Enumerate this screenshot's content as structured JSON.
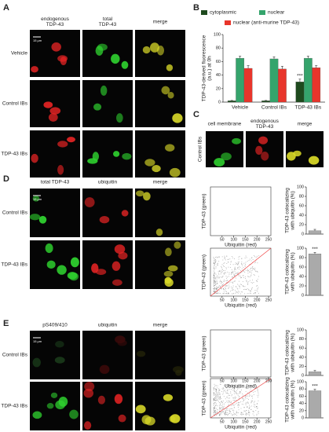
{
  "panel_labels": [
    "A",
    "B",
    "C",
    "D",
    "E"
  ],
  "panel_a": {
    "columns": [
      [
        "endogenous",
        "TDP-43"
      ],
      [
        "total",
        "TDP-43"
      ],
      [
        "merge"
      ]
    ],
    "rows": [
      "Vehicle",
      "Control IBs",
      "TDP-43 IBs"
    ],
    "scale_bar": "15 μm"
  },
  "panel_c": {
    "columns": [
      [
        "cell membrane"
      ],
      [
        "endogenous",
        "TDP-43"
      ],
      [
        "merge"
      ]
    ],
    "row": "Control IBs"
  },
  "panel_d": {
    "columns": [
      [
        "total TDP-43"
      ],
      [
        "ubiquitin"
      ],
      [
        "merge"
      ]
    ],
    "rows": [
      "Control IBs",
      "TDP-43 IBs"
    ],
    "scale_bar": "15 μm"
  },
  "panel_e": {
    "columns": [
      [
        "pS409/410"
      ],
      [
        "ubiquitin"
      ],
      [
        "merge"
      ]
    ],
    "rows": [
      "Control IBs",
      "TDP-43 IBs"
    ],
    "scale_bar": "15 μm"
  },
  "chart_data": [
    {
      "type": "bar",
      "y_label": [
        "TDP-43-derived fluorescence",
        "(a.u.) at 0h"
      ],
      "categories": [
        "Vehicle",
        "Control IBs",
        "TDP-43 IBs"
      ],
      "series": [
        {
          "name": "cytoplasmic",
          "color": "#1e4a1e",
          "values": [
            2,
            2,
            30
          ],
          "errors": [
            0.5,
            0.5,
            4
          ],
          "significance": [
            null,
            null,
            "***"
          ]
        },
        {
          "name": "nuclear",
          "color": "#35a46c",
          "values": [
            65,
            64,
            65
          ],
          "errors": [
            3,
            3,
            3
          ]
        },
        {
          "name": "nuclear (anti-murine TDP-43)",
          "color": "#e8352b",
          "values": [
            50,
            49,
            51
          ],
          "errors": [
            4,
            4,
            3
          ]
        }
      ],
      "ylim": [
        0,
        100
      ],
      "yticks": [
        0,
        20,
        40,
        60,
        80,
        100
      ]
    },
    {
      "type": "scatter",
      "x_label": "Ubiquitin (red)",
      "y_label": "TDP-43 (green)",
      "xlim": [
        0,
        260
      ],
      "ylim": [
        0,
        260
      ],
      "xticks": [
        50,
        100,
        150,
        200,
        250
      ]
    },
    {
      "type": "bar",
      "y_label": [
        "TDP-43 colocalizing",
        "with ubiquitin (%)"
      ],
      "categories": [
        null
      ],
      "values": [
        7
      ],
      "errors": [
        3
      ],
      "color": "#aaaaaa",
      "ylim": [
        0,
        100
      ],
      "yticks": [
        0,
        20,
        40,
        60,
        80,
        100
      ]
    },
    {
      "type": "scatter",
      "x_label": "Ubiquitin (red)",
      "y_label": "TDP-43 (green)",
      "xlim": [
        0,
        260
      ],
      "ylim": [
        0,
        260
      ],
      "xticks": [
        50,
        100,
        150,
        200,
        250
      ]
    },
    {
      "type": "bar",
      "y_label": [
        "TDP-43 colocalizing",
        "with ubiquitin (%)"
      ],
      "categories": [
        null
      ],
      "values": [
        88
      ],
      "errors": [
        3
      ],
      "significance": [
        "***"
      ],
      "color": "#aaaaaa",
      "ylim": [
        0,
        100
      ],
      "yticks": [
        0,
        20,
        40,
        60,
        80,
        100
      ]
    },
    {
      "type": "scatter",
      "x_label": "Ubiquitin (red)",
      "y_label": "TDP-43 (green)",
      "xlim": [
        0,
        260
      ],
      "ylim": [
        0,
        260
      ],
      "xticks": [
        50,
        100,
        150,
        200,
        250
      ]
    },
    {
      "type": "bar",
      "y_label": [
        "TDP-43 colocalizing",
        "with ubiquitin (%)"
      ],
      "categories": [
        null
      ],
      "values": [
        8
      ],
      "errors": [
        3
      ],
      "color": "#aaaaaa",
      "ylim": [
        0,
        100
      ],
      "yticks": [
        0,
        20,
        40,
        60,
        80,
        100
      ]
    },
    {
      "type": "scatter",
      "x_label": "Ubiquitin (red)",
      "y_label": "TDP-43 (green)",
      "xlim": [
        0,
        260
      ],
      "ylim": [
        0,
        260
      ],
      "xticks": [
        50,
        100,
        150,
        200,
        250
      ]
    },
    {
      "type": "bar",
      "y_label": [
        "TDP-43 colocalizing",
        "with ubiquitin (%)"
      ],
      "categories": [
        null
      ],
      "values": [
        75
      ],
      "errors": [
        4
      ],
      "significance": [
        "***"
      ],
      "color": "#aaaaaa",
      "ylim": [
        0,
        100
      ],
      "yticks": [
        0,
        20,
        40,
        60,
        80,
        100
      ]
    }
  ]
}
